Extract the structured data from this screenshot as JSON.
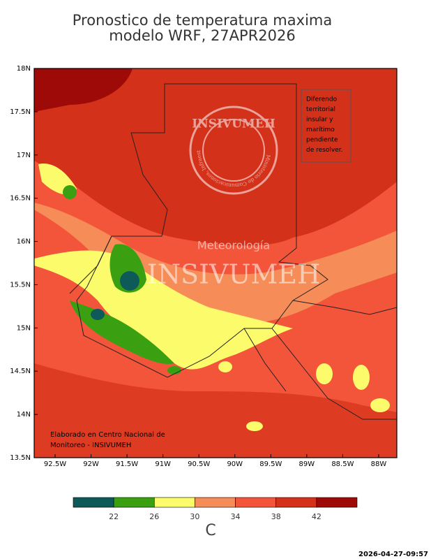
{
  "title": [
    "Pronostico de temperatura maxima",
    "modelo WRF, 27APR2026"
  ],
  "lat_labels": [
    "18N",
    "17.5N",
    "17N",
    "16.5N",
    "16N",
    "15.5N",
    "15N",
    "14.5N",
    "14N",
    "13.5N"
  ],
  "lon_labels": [
    "92.5W",
    "92W",
    "91.5W",
    "91W",
    "90.5W",
    "90W",
    "89.5W",
    "89W",
    "88.5W",
    "88W"
  ],
  "note_dispute": [
    "Diferendo",
    "territorial",
    "insular y",
    "marítimo",
    "pendiente",
    "de resolver."
  ],
  "note_credit": [
    "Elaborado en Centro Nacional de",
    "Monitoreo - INSIVUMEH"
  ],
  "watermark": {
    "logo_name": "INSIVUMEH",
    "logo_ring": "Ministerio de Comunicaciones, Infraestructura y Vivienda",
    "line1": "Meteorología",
    "line2": "INSIVUMEH"
  },
  "colorbar": {
    "colors": [
      "#0d5a58",
      "#3aa012",
      "#fcfb6c",
      "#f68c58",
      "#f3553b",
      "#d4311a",
      "#9e0a08"
    ],
    "ticks": [
      22,
      26,
      30,
      34,
      38,
      42
    ],
    "unit": "C"
  },
  "timestamp": "2026-04-27-09:57"
}
